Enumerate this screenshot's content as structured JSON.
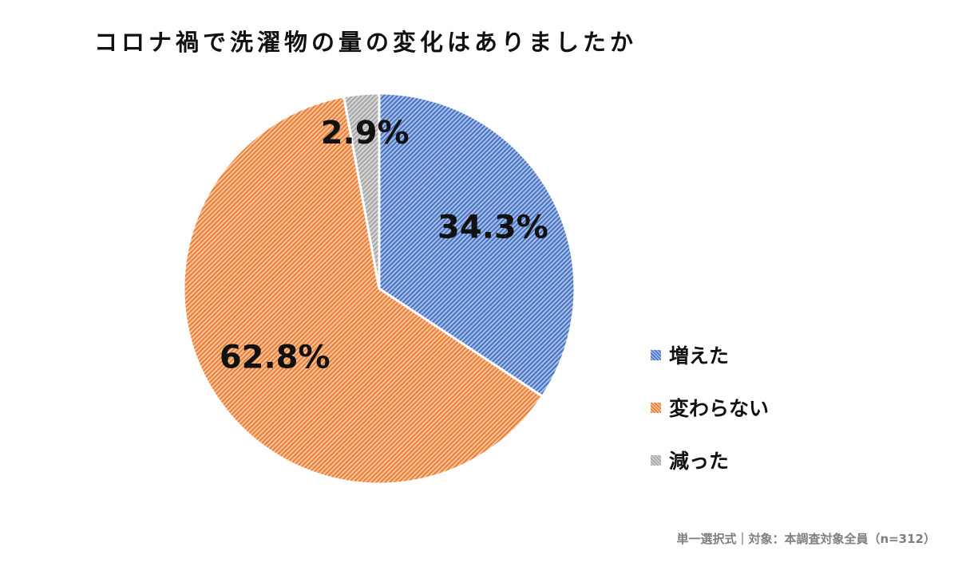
{
  "chart_data": {
    "type": "pie",
    "title": "コロナ禍で洗濯物の量の変化はありましたか",
    "categories": [
      "増えた",
      "変わらない",
      "減った"
    ],
    "values": [
      34.3,
      62.8,
      2.9
    ],
    "data_labels": [
      "34.3%",
      "62.8%",
      "2.9%"
    ],
    "colors": [
      "#4472C4",
      "#ED7D31",
      "#A5A5A5"
    ],
    "fill_style": "diagonal-hatch",
    "start_angle_deg": 0,
    "direction": "clockwise",
    "legend_position": "right",
    "note": "単一選択式｜対象：本調査対象全員（n=312）"
  }
}
